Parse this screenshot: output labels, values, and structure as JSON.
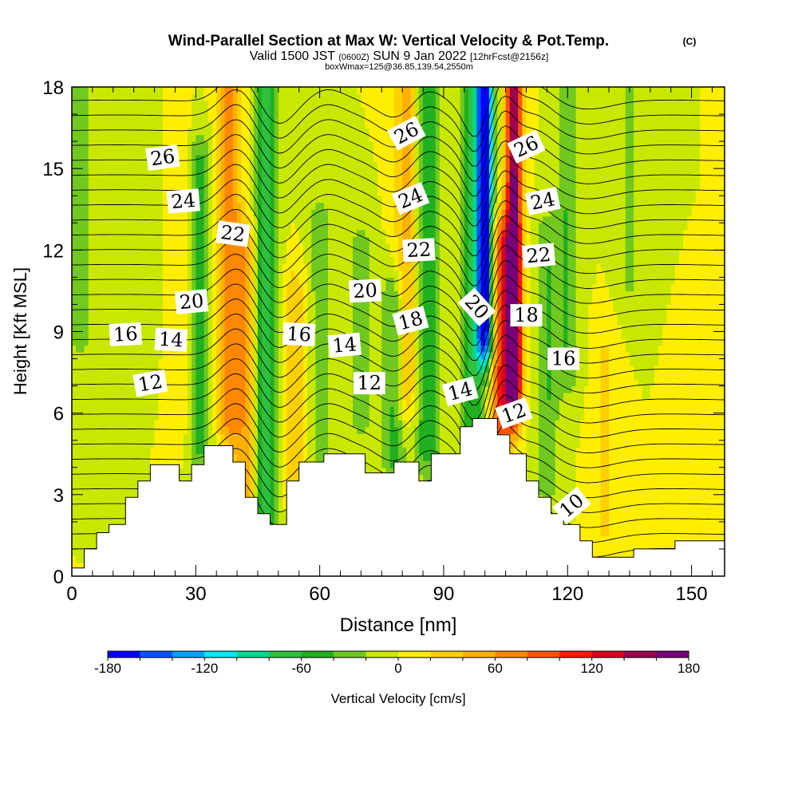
{
  "header": {
    "title": "Wind-Parallel Section at Max W: Vertical Velocity & Pot.Temp.",
    "title_mark": "(C)",
    "valid_prefix": "Valid 1500 JST",
    "valid_zulu": "(0600Z)",
    "valid_date": "SUN 9 Jan 2022",
    "forecast": "[12hrFcst@2156z]",
    "box_info": "boxWmax=125@36.85,139.54,2550m"
  },
  "chart_data": {
    "type": "heatmap",
    "title": "Wind-Parallel Section at Max W: Vertical Velocity & Pot.Temp.",
    "xlabel": "Distance [nm]",
    "ylabel": "Height [Kft MSL]",
    "xlim": [
      0,
      158
    ],
    "ylim": [
      0,
      18
    ],
    "x_ticks": [
      0,
      30,
      60,
      90,
      120,
      150
    ],
    "y_ticks": [
      0,
      3,
      6,
      9,
      12,
      15,
      18
    ],
    "colorbar": {
      "label": "Vertical Velocity [cm/s]",
      "range": [
        -180,
        180
      ],
      "ticks": [
        -180,
        -120,
        -60,
        0,
        60,
        120,
        180
      ],
      "colors": [
        "#0000ff",
        "#0055ff",
        "#00a0ff",
        "#00e8f8",
        "#00d890",
        "#30c040",
        "#20b020",
        "#70c820",
        "#c8e800",
        "#ffee00",
        "#ffd000",
        "#ffb000",
        "#ff8800",
        "#ff5500",
        "#ff1800",
        "#d80020",
        "#a00050",
        "#780078"
      ]
    },
    "terrain_kft": [
      [
        0,
        0.3
      ],
      [
        3,
        0.3
      ],
      [
        3,
        1.0
      ],
      [
        6,
        1.0
      ],
      [
        6,
        1.6
      ],
      [
        9,
        1.6
      ],
      [
        9,
        1.9
      ],
      [
        13,
        1.9
      ],
      [
        13,
        2.9
      ],
      [
        16,
        2.9
      ],
      [
        16,
        3.5
      ],
      [
        19,
        3.5
      ],
      [
        19,
        4.1
      ],
      [
        26,
        4.1
      ],
      [
        26,
        3.5
      ],
      [
        29,
        3.5
      ],
      [
        29,
        4.1
      ],
      [
        32,
        4.1
      ],
      [
        32,
        4.8
      ],
      [
        39,
        4.8
      ],
      [
        39,
        4.2
      ],
      [
        42,
        4.2
      ],
      [
        42,
        2.9
      ],
      [
        45,
        2.9
      ],
      [
        45,
        2.3
      ],
      [
        48,
        2.3
      ],
      [
        48,
        1.9
      ],
      [
        52,
        1.9
      ],
      [
        52,
        3.5
      ],
      [
        55,
        3.5
      ],
      [
        55,
        4.2
      ],
      [
        61,
        4.2
      ],
      [
        61,
        4.5
      ],
      [
        71,
        4.5
      ],
      [
        71,
        3.8
      ],
      [
        78,
        3.8
      ],
      [
        78,
        4.2
      ],
      [
        84,
        4.2
      ],
      [
        84,
        3.5
      ],
      [
        87,
        3.5
      ],
      [
        87,
        4.5
      ],
      [
        94,
        4.5
      ],
      [
        94,
        5.5
      ],
      [
        97,
        5.5
      ],
      [
        97,
        5.8
      ],
      [
        103,
        5.8
      ],
      [
        103,
        5.2
      ],
      [
        106,
        5.2
      ],
      [
        106,
        4.5
      ],
      [
        110,
        4.5
      ],
      [
        110,
        3.5
      ],
      [
        113,
        3.5
      ],
      [
        113,
        2.9
      ],
      [
        116,
        2.9
      ],
      [
        116,
        2.3
      ],
      [
        119,
        2.3
      ],
      [
        119,
        1.9
      ],
      [
        123,
        1.9
      ],
      [
        123,
        1.3
      ],
      [
        126,
        1.3
      ],
      [
        126,
        0.7
      ],
      [
        136,
        0.7
      ],
      [
        136,
        1.0
      ],
      [
        146,
        1.0
      ],
      [
        146,
        1.3
      ],
      [
        158,
        1.3
      ]
    ],
    "w_features": [
      {
        "x": 2,
        "w": -30,
        "z0": 9,
        "z1": 18
      },
      {
        "x": 17,
        "w": -20,
        "z0": 8,
        "z1": 18
      },
      {
        "x": 26,
        "w": 20,
        "z0": 6,
        "z1": 16
      },
      {
        "x": 31,
        "w": -50,
        "z0": 5,
        "z1": 15
      },
      {
        "x": 38,
        "w": 70,
        "z0": 6,
        "z1": 18
      },
      {
        "x": 42,
        "w": 50,
        "z0": 3,
        "z1": 12
      },
      {
        "x": 47,
        "w": -70,
        "z0": 2.5,
        "z1": 18
      },
      {
        "x": 54,
        "w": 40,
        "z0": 4,
        "z1": 10
      },
      {
        "x": 60,
        "w": -30,
        "z0": 4,
        "z1": 13
      },
      {
        "x": 70,
        "w": -30,
        "z0": 6,
        "z1": 12
      },
      {
        "x": 78,
        "w": -50,
        "z0": 4.5,
        "z1": 10
      },
      {
        "x": 81,
        "w": 50,
        "z0": 7,
        "z1": 18
      },
      {
        "x": 86,
        "w": -60,
        "z0": 5,
        "z1": 18
      },
      {
        "x": 97,
        "w": -60,
        "z0": 6,
        "z1": 18
      },
      {
        "x": 100,
        "w": -180,
        "z0": 9,
        "z1": 18
      },
      {
        "x": 104,
        "w": 100,
        "z0": 6,
        "z1": 12
      },
      {
        "x": 107,
        "w": 170,
        "z0": 7,
        "z1": 18
      },
      {
        "x": 115,
        "w": -40,
        "z0": 4,
        "z1": 12
      },
      {
        "x": 120,
        "w": -40,
        "z0": 8,
        "z1": 18
      },
      {
        "x": 129,
        "w": 25,
        "z0": 2,
        "z1": 8
      },
      {
        "x": 135,
        "w": -25,
        "z0": 11,
        "z1": 18
      },
      {
        "x": 150,
        "w": 20,
        "z0": 2,
        "z1": 6
      }
    ],
    "theta_contours": [
      {
        "label": "10",
        "base_kft": 1.0
      },
      {
        "label": "12",
        "base_kft": 4.6
      },
      {
        "label": "14",
        "base_kft": 7.2
      },
      {
        "label": "16",
        "base_kft": 8.7
      },
      {
        "label": "18",
        "base_kft": 9.6
      },
      {
        "label": "20",
        "base_kft": 10.8
      },
      {
        "label": "22",
        "base_kft": 12.3
      },
      {
        "label": "24",
        "base_kft": 14.0
      },
      {
        "label": "26",
        "base_kft": 15.7
      }
    ],
    "contour_labels": [
      {
        "text": "26",
        "x": 22,
        "y": 15.4,
        "rot": -8
      },
      {
        "text": "24",
        "x": 27,
        "y": 13.8,
        "rot": -5
      },
      {
        "text": "22",
        "x": 39,
        "y": 12.6,
        "rot": 8
      },
      {
        "text": "20",
        "x": 29,
        "y": 10.1,
        "rot": -5
      },
      {
        "text": "16",
        "x": 13,
        "y": 8.9,
        "rot": -3
      },
      {
        "text": "14",
        "x": 24,
        "y": 8.7,
        "rot": 3
      },
      {
        "text": "12",
        "x": 19,
        "y": 7.1,
        "rot": -10
      },
      {
        "text": "16",
        "x": 55,
        "y": 8.9,
        "rot": 3
      },
      {
        "text": "14",
        "x": 66,
        "y": 8.5,
        "rot": -5
      },
      {
        "text": "12",
        "x": 72,
        "y": 7.1,
        "rot": 0
      },
      {
        "text": "20",
        "x": 71,
        "y": 10.5,
        "rot": -3
      },
      {
        "text": "26",
        "x": 81,
        "y": 16.3,
        "rot": -28
      },
      {
        "text": "24",
        "x": 82,
        "y": 13.9,
        "rot": -22
      },
      {
        "text": "22",
        "x": 84,
        "y": 12.0,
        "rot": -3
      },
      {
        "text": "18",
        "x": 82,
        "y": 9.4,
        "rot": -15
      },
      {
        "text": "20",
        "x": 98,
        "y": 9.9,
        "rot": 48
      },
      {
        "text": "14",
        "x": 94,
        "y": 6.8,
        "rot": -15
      },
      {
        "text": "26",
        "x": 110,
        "y": 15.8,
        "rot": -25
      },
      {
        "text": "24",
        "x": 114,
        "y": 13.8,
        "rot": -12
      },
      {
        "text": "22",
        "x": 113,
        "y": 11.8,
        "rot": -5
      },
      {
        "text": "18",
        "x": 110,
        "y": 9.6,
        "rot": 0
      },
      {
        "text": "16",
        "x": 119,
        "y": 8.0,
        "rot": 0
      },
      {
        "text": "12",
        "x": 107,
        "y": 6.0,
        "rot": -20
      },
      {
        "text": "10",
        "x": 121,
        "y": 2.6,
        "rot": -40
      }
    ]
  }
}
